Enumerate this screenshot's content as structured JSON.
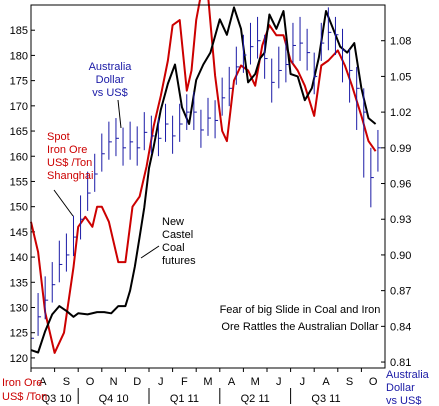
{
  "chart_data": {
    "type": "line",
    "annotation": [
      "Fear of big Slide in Coal and Iron",
      "Ore Rattles the Australian Dollar"
    ],
    "left_axis": {
      "title": [
        "Iron Ore",
        "US$ /Ton"
      ],
      "ticks": [
        120,
        125,
        130,
        135,
        140,
        145,
        150,
        155,
        160,
        165,
        170,
        175,
        180,
        185
      ],
      "ylim": [
        118,
        190
      ],
      "color": "#cc0000"
    },
    "right_axis": {
      "title": [
        "Australia",
        "Dollar",
        "vs US$"
      ],
      "ticks": [
        "0.81",
        "0.84",
        "0.87",
        "0.90",
        "0.93",
        "0.96",
        "0.99",
        "1.02",
        "1.05",
        "1.08"
      ],
      "ylim": [
        0.805,
        1.11
      ],
      "color": "#1a1aa6"
    },
    "x_axis": {
      "months": [
        "A",
        "S",
        "O",
        "N",
        "D",
        "J",
        "F",
        "M",
        "A",
        "M",
        "J",
        "J",
        "A",
        "S",
        "O"
      ],
      "quarters": [
        "Q3 10",
        "Q4 10",
        "Q1 11",
        "Q2 11",
        "Q3 11"
      ],
      "xlim": [
        0,
        15
      ]
    },
    "series": [
      {
        "name": "Spot Iron Ore US$ /Ton Shanghai",
        "label_lines": [
          "Spot",
          "Iron Ore",
          "US$ /Ton",
          "Shanghai"
        ],
        "axis": "left",
        "color": "#cc0000",
        "x": [
          0,
          0.3,
          0.6,
          1.0,
          1.4,
          1.8,
          2.0,
          2.3,
          2.6,
          2.8,
          3.0,
          3.3,
          3.5,
          3.7,
          4.0,
          4.3,
          4.6,
          4.9,
          5.2,
          5.5,
          5.8,
          6.0,
          6.3,
          6.6,
          6.8,
          7.0,
          7.2,
          7.5,
          7.8,
          8.1,
          8.3,
          8.6,
          8.9,
          9.2,
          9.5,
          9.8,
          10.1,
          10.4,
          10.7,
          11.0,
          11.3,
          11.6,
          12.0,
          12.3,
          12.6,
          13.0,
          13.3,
          13.6,
          14.0,
          14.3,
          14.6
        ],
        "y": [
          147,
          141,
          129,
          121,
          125,
          138,
          146,
          148,
          146,
          150,
          150,
          147,
          143,
          139,
          139,
          150,
          152,
          158,
          166,
          172,
          179,
          186,
          187,
          173,
          177,
          187,
          192,
          192,
          176,
          165,
          163,
          175,
          178,
          177,
          174,
          182,
          186,
          184,
          184,
          179,
          177,
          174,
          168,
          178,
          179,
          181,
          178,
          174,
          168,
          163,
          161
        ]
      },
      {
        "name": "New Castel Coal futures",
        "label_lines": [
          "New",
          "Castel",
          "Coal",
          "futures"
        ],
        "axis": "right",
        "color": "#000000",
        "x": [
          0,
          0.3,
          0.6,
          0.9,
          1.2,
          1.5,
          1.8,
          2.0,
          2.4,
          2.8,
          3.1,
          3.4,
          3.7,
          4.0,
          4.2,
          4.4,
          4.6,
          4.8,
          5.0,
          5.2,
          5.5,
          5.8,
          6.1,
          6.4,
          6.7,
          7.0,
          7.3,
          7.6,
          8.0,
          8.3,
          8.6,
          8.9,
          9.2,
          9.5,
          9.7,
          9.9,
          10.1,
          10.4,
          10.7,
          11.0,
          11.3,
          11.6,
          11.9,
          12.2,
          12.5,
          12.8,
          13.1,
          13.4,
          13.7,
          14.0,
          14.3,
          14.6
        ],
        "y": [
          0.82,
          0.818,
          0.836,
          0.85,
          0.857,
          0.853,
          0.848,
          0.851,
          0.85,
          0.852,
          0.852,
          0.851,
          0.857,
          0.857,
          0.87,
          0.89,
          0.915,
          0.94,
          0.973,
          0.991,
          1.022,
          1.044,
          1.06,
          1.024,
          1.01,
          1.047,
          1.06,
          1.07,
          1.098,
          1.085,
          1.108,
          1.09,
          1.045,
          1.052,
          1.065,
          1.07,
          1.102,
          1.09,
          1.105,
          1.052,
          1.05,
          1.03,
          1.04,
          1.066,
          1.105,
          1.09,
          1.075,
          1.07,
          1.078,
          1.04,
          1.015,
          1.01
        ]
      },
      {
        "name": "Australia Dollar vs US$",
        "label_lines": [
          "Australia",
          "Dollar",
          "vs US$"
        ],
        "axis": "right",
        "color": "#1a1aa6",
        "style": "hlc-bars",
        "x": [
          0.0,
          0.3,
          0.6,
          0.9,
          1.2,
          1.5,
          1.8,
          2.1,
          2.4,
          2.7,
          3.0,
          3.3,
          3.6,
          3.9,
          4.2,
          4.5,
          4.8,
          5.1,
          5.4,
          5.7,
          6.0,
          6.3,
          6.6,
          6.9,
          7.2,
          7.5,
          7.8,
          8.1,
          8.4,
          8.7,
          9.0,
          9.3,
          9.6,
          9.9,
          10.2,
          10.5,
          10.8,
          11.1,
          11.4,
          11.7,
          12.0,
          12.3,
          12.6,
          12.9,
          13.2,
          13.5,
          13.8,
          14.1,
          14.4,
          14.7
        ],
        "y": [
          0.83,
          0.848,
          0.862,
          0.875,
          0.892,
          0.9,
          0.915,
          0.93,
          0.952,
          0.968,
          0.985,
          0.995,
          0.998,
          0.99,
          0.995,
          0.99,
          1.003,
          1.0,
          0.998,
          1.01,
          1.0,
          1.01,
          1.02,
          1.02,
          1.005,
          1.015,
          1.013,
          1.032,
          1.04,
          1.058,
          1.068,
          1.075,
          1.08,
          1.065,
          1.045,
          1.055,
          1.06,
          1.076,
          1.078,
          1.07,
          1.05,
          1.078,
          1.087,
          1.085,
          1.072,
          1.055,
          1.04,
          1.02,
          0.965,
          0.99
        ],
        "low": [
          0.813,
          0.832,
          0.846,
          0.86,
          0.877,
          0.886,
          0.899,
          0.913,
          0.937,
          0.953,
          0.97,
          0.98,
          0.983,
          0.975,
          0.98,
          0.975,
          0.988,
          0.985,
          0.983,
          0.995,
          0.985,
          0.995,
          1.005,
          1.005,
          0.99,
          1.0,
          0.998,
          1.017,
          1.025,
          1.043,
          1.053,
          1.06,
          1.065,
          1.048,
          1.028,
          1.04,
          1.045,
          1.061,
          1.063,
          1.055,
          1.035,
          1.063,
          1.072,
          1.068,
          1.045,
          1.028,
          1.005,
          0.965,
          0.94,
          0.97
        ],
        "high": [
          0.848,
          0.868,
          0.882,
          0.894,
          0.912,
          0.918,
          0.933,
          0.95,
          0.97,
          0.985,
          1.002,
          1.012,
          1.015,
          1.007,
          1.012,
          1.008,
          1.02,
          1.017,
          1.015,
          1.027,
          1.017,
          1.027,
          1.035,
          1.037,
          1.022,
          1.032,
          1.03,
          1.049,
          1.058,
          1.075,
          1.085,
          1.095,
          1.1,
          1.085,
          1.065,
          1.075,
          1.08,
          1.095,
          1.1,
          1.09,
          1.07,
          1.095,
          1.108,
          1.1,
          1.09,
          1.073,
          1.058,
          1.04,
          0.99,
          1.005
        ]
      }
    ]
  }
}
